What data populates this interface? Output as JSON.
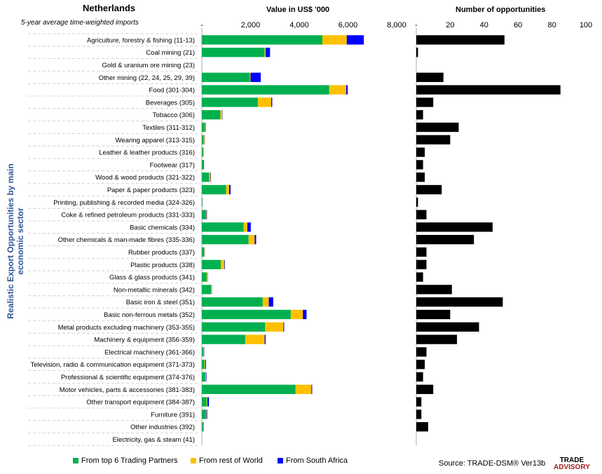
{
  "header": {
    "country": "Netherlands",
    "subtitle": "5-year average time-weighted imports",
    "y_axis_title": "Realistic Export Opportunities by main economic sector"
  },
  "legend": {
    "items": [
      {
        "label": "From top 6 Trading Partners",
        "color": "#00b050"
      },
      {
        "label": "From rest of World",
        "color": "#ffc000"
      },
      {
        "label": "From South Africa",
        "color": "#0000ff"
      }
    ]
  },
  "footer": {
    "source": "Source: TRADE-DSM®  Ver13b",
    "logo_line1": "TRADE",
    "logo_line2": "ADVISORY"
  },
  "chart_data": [
    {
      "type": "bar",
      "orientation": "horizontal",
      "stacked": true,
      "title": "Value in US$ '000",
      "xlim": [
        0,
        8000
      ],
      "tick_labels": [
        "-",
        "2,000",
        "4,000",
        "6,000",
        "8,000"
      ],
      "categories": [
        "Agriculture, forestry & fishing (11-13)",
        "Coal mining (21)",
        "Gold & uranium ore mining (23)",
        "Other mining (22, 24, 25, 29, 39)",
        "Food (301-304)",
        "Beverages (305)",
        "Tobacco (306)",
        "Textiles (311-312)",
        "Wearing apparel (313-315)",
        "Leather & leather products (316)",
        "Footwear (317)",
        "Wood & wood products (321-322)",
        "Paper & paper products (323)",
        "Printing, publishing & recorded media (324-326)",
        "Coke & refined petroleum products (331-333)",
        "Basic chemicals (334)",
        "Other chemicals & man-made fibres (335-336)",
        "Rubber products (337)",
        "Plastic products (338)",
        "Glass & glass products (341)",
        "Non-metallic minerals (342)",
        "Basic iron & steel (351)",
        "Basic non-ferrous metals (352)",
        "Metal products excluding machinery (353-355)",
        "Machinery & equipment (356-359)",
        "Electrical machinery (361-366)",
        "Television, radio & communication equipment (371-373)",
        "Professional & scientific equipment (374-376)",
        "Motor vehicles, parts & accessories (381-383)",
        "Other transport equipment (384-387)",
        "Furniture (391)",
        "Other industries (392)",
        "Electricity, gas & steam (41)"
      ],
      "series": [
        {
          "name": "From top 6 Trading Partners",
          "color": "#00b050",
          "values": [
            4950,
            2580,
            0,
            1970,
            5230,
            2300,
            760,
            120,
            80,
            50,
            60,
            300,
            1000,
            20,
            170,
            1720,
            1920,
            90,
            780,
            200,
            380,
            2500,
            3650,
            2600,
            1780,
            70,
            110,
            150,
            3850,
            200,
            170,
            40,
            0
          ]
        },
        {
          "name": "From rest of World",
          "color": "#ffc000",
          "values": [
            1000,
            40,
            0,
            30,
            700,
            550,
            80,
            20,
            30,
            10,
            10,
            60,
            120,
            5,
            20,
            150,
            250,
            20,
            150,
            30,
            20,
            250,
            500,
            750,
            800,
            20,
            30,
            20,
            650,
            30,
            20,
            10,
            0
          ]
        },
        {
          "name": "From South Africa",
          "color": "#0000ff",
          "values": [
            700,
            180,
            0,
            420,
            60,
            40,
            10,
            20,
            10,
            10,
            20,
            15,
            60,
            5,
            20,
            140,
            60,
            10,
            20,
            10,
            10,
            180,
            150,
            30,
            40,
            10,
            30,
            20,
            30,
            60,
            30,
            20,
            0
          ]
        }
      ]
    },
    {
      "type": "bar",
      "orientation": "horizontal",
      "title": "Number of opportunities",
      "xlim": [
        0,
        100
      ],
      "tick_labels": [
        "-",
        "20",
        "40",
        "60",
        "80",
        "100"
      ],
      "color": "#000000",
      "values": [
        52,
        1,
        0,
        16,
        85,
        10,
        4,
        25,
        20,
        5,
        4,
        5,
        15,
        1,
        6,
        45,
        34,
        6,
        6,
        4,
        21,
        51,
        20,
        37,
        24,
        6,
        5,
        4,
        10,
        3,
        3,
        7,
        0
      ]
    }
  ]
}
